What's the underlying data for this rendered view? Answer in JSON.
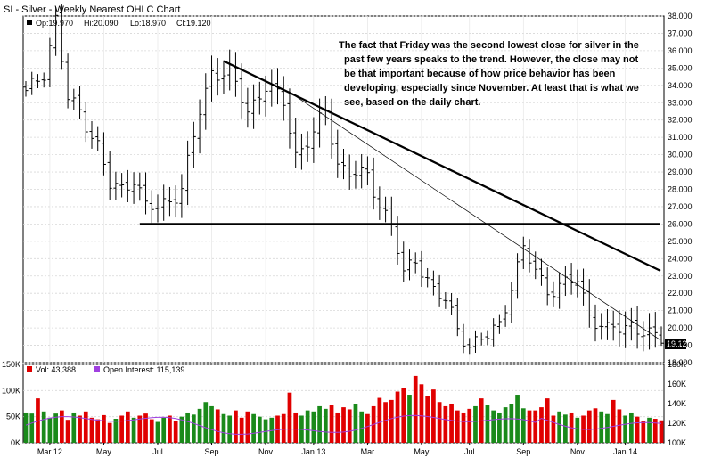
{
  "chart_data": {
    "type": "ohlc",
    "title": "SI - Silver - Weekly Nearest OHLC Chart",
    "ohlc_legend": {
      "open": "Op:19.970",
      "high": "Hi:20.090",
      "low": "Lo:18.970",
      "close": "Cl:19.120"
    },
    "last_price_label": "19.120",
    "price_axis": {
      "min": 18,
      "max": 38,
      "ticks": [
        "38.000",
        "37.000",
        "36.000",
        "35.000",
        "34.000",
        "33.000",
        "32.000",
        "31.000",
        "30.000",
        "29.000",
        "28.000",
        "27.000",
        "26.000",
        "25.000",
        "24.000",
        "23.000",
        "22.000",
        "21.000",
        "20.000",
        "19.000",
        "18.000"
      ]
    },
    "x_ticks": [
      {
        "label": "Mar 12",
        "week": 4
      },
      {
        "label": "May",
        "week": 13
      },
      {
        "label": "Jul",
        "week": 22
      },
      {
        "label": "Sep",
        "week": 31
      },
      {
        "label": "Nov",
        "week": 40
      },
      {
        "label": "Jan 13",
        "week": 48
      },
      {
        "label": "Mar",
        "week": 57
      },
      {
        "label": "May",
        "week": 66
      },
      {
        "label": "Jul",
        "week": 74
      },
      {
        "label": "Sep",
        "week": 83
      },
      {
        "label": "Nov",
        "week": 92
      },
      {
        "label": "Jan 14",
        "week": 100
      }
    ],
    "weeks": 107,
    "price_points": [
      [
        0,
        33.5
      ],
      [
        3,
        34.8
      ],
      [
        5,
        37.8
      ],
      [
        7,
        33.2
      ],
      [
        9,
        32.5
      ],
      [
        12,
        30.5
      ],
      [
        14,
        28.2
      ],
      [
        16,
        28.0
      ],
      [
        18,
        28.7
      ],
      [
        20,
        27.0
      ],
      [
        22,
        26.9
      ],
      [
        26,
        28.0
      ],
      [
        29,
        32.5
      ],
      [
        31,
        34.8
      ],
      [
        34,
        34.7
      ],
      [
        37,
        32.5
      ],
      [
        40,
        34.0
      ],
      [
        43,
        33.0
      ],
      [
        45,
        30.0
      ],
      [
        48,
        31.2
      ],
      [
        50,
        32.5
      ],
      [
        52,
        29.5
      ],
      [
        54,
        29.0
      ],
      [
        57,
        28.7
      ],
      [
        59,
        27.2
      ],
      [
        61,
        26.0
      ],
      [
        63,
        23.0
      ],
      [
        65,
        24.0
      ],
      [
        68,
        22.2
      ],
      [
        70,
        21.5
      ],
      [
        72,
        20.0
      ],
      [
        74,
        19.0
      ],
      [
        77,
        19.5
      ],
      [
        79,
        20.2
      ],
      [
        81,
        22.5
      ],
      [
        83,
        24.5
      ],
      [
        85,
        23.3
      ],
      [
        87,
        22.2
      ],
      [
        90,
        22.5
      ],
      [
        92,
        22.8
      ],
      [
        94,
        20.8
      ],
      [
        97,
        19.8
      ],
      [
        99,
        20.0
      ],
      [
        101,
        20.2
      ],
      [
        103,
        19.8
      ],
      [
        106,
        19.12
      ]
    ],
    "trendlines": [
      {
        "style": "thick",
        "from": {
          "week": 33,
          "price": 35.4
        },
        "to": {
          "week": 107,
          "price": 23.3
        }
      },
      {
        "style": "thin",
        "from": {
          "week": 44,
          "price": 33.6
        },
        "to": {
          "week": 107,
          "price": 19.3
        }
      },
      {
        "style": "horizontal",
        "from": {
          "week": 19,
          "price": 26.0
        },
        "to": {
          "week": 107,
          "price": 26.0
        }
      }
    ],
    "annotation": [
      "The fact that Friday was the second lowest close for silver in the",
      "past few years speaks to the trend.  However, the close may not",
      "be that important because of how price behavior has been",
      "developing, especially since November.  At least that is what we",
      "see, based on the daily chart."
    ],
    "volume_panel": {
      "vol_label": "Vol: 43,388",
      "oi_label": "Open Interest: 115,139",
      "vol_axis": {
        "min": 0,
        "max": 150000,
        "ticks": [
          "150K",
          "100K",
          "50K",
          "0K"
        ]
      },
      "oi_axis": {
        "min": 100000,
        "max": 180000,
        "ticks": [
          "180K",
          "160K",
          "140K",
          "120K",
          "100K"
        ]
      },
      "volume_k": [
        58,
        56,
        85,
        60,
        48,
        56,
        62,
        44,
        58,
        52,
        60,
        48,
        45,
        53,
        38,
        46,
        52,
        60,
        48,
        52,
        56,
        45,
        40,
        48,
        52,
        42,
        50,
        58,
        54,
        65,
        78,
        70,
        64,
        55,
        52,
        62,
        48,
        60,
        55,
        50,
        45,
        48,
        52,
        55,
        96,
        58,
        52,
        62,
        60,
        70,
        65,
        72,
        58,
        68,
        64,
        75,
        60,
        55,
        70,
        86,
        78,
        82,
        98,
        105,
        92,
        128,
        112,
        90,
        102,
        78,
        70,
        75,
        62,
        58,
        65,
        70,
        85,
        72,
        62,
        58,
        68,
        75,
        92,
        66,
        62,
        62,
        68,
        85,
        52,
        60,
        54,
        58,
        48,
        52,
        62,
        66,
        60,
        55,
        82,
        64,
        52,
        58,
        50,
        42,
        48,
        46,
        43
      ]
    },
    "colors": {
      "up_volume": "#1a8a1a",
      "down_volume": "#e00000",
      "open_interest": "#a040e0",
      "trendline": "#000000"
    }
  }
}
